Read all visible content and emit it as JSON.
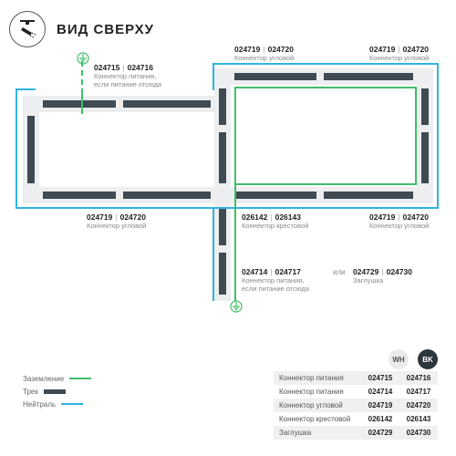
{
  "title": "ВИД СВЕРХУ",
  "colors": {
    "ground": "#3fbf6a",
    "track": "#3f4a53",
    "neutral": "#2fb4e0",
    "slab": "#eceef0",
    "text": "#222222",
    "muted": "#888888",
    "tbl_alt": "#eef0f2"
  },
  "diagram": {
    "type": "diagram",
    "labels": {
      "top_mid": {
        "a": "024719",
        "b": "024720",
        "desc": "Коннектор угловой"
      },
      "top_right": {
        "a": "024719",
        "b": "024720",
        "desc": "Коннектор угловой"
      },
      "left_power": {
        "a": "024715",
        "b": "024716",
        "desc": "Коннектор питания,\nесли питание отсюда"
      },
      "bot_left": {
        "a": "024719",
        "b": "024720",
        "desc": "Коннектор угловой"
      },
      "bot_mid": {
        "a": "026142",
        "b": "026143",
        "desc": "Коннектор крестовой"
      },
      "bot_rt": {
        "a": "024719",
        "b": "024720",
        "desc": "Коннектор угловой"
      },
      "tail_power": {
        "a": "024714",
        "b": "024717",
        "desc": "Коннектор питания,\nесли питание отсюда"
      },
      "or_word": "или",
      "tail_plug": {
        "a": "024729",
        "b": "024730",
        "desc": "Заглушка"
      }
    }
  },
  "legend_colors": [
    {
      "name": "Заземление",
      "color": "#3fbf6a",
      "h": 2
    },
    {
      "name": "Трек",
      "color": "#3f4a53",
      "h": 5
    },
    {
      "name": "Нейтраль",
      "color": "#2fb4e0",
      "h": 2
    }
  ],
  "table": {
    "col_a": "WH",
    "col_b": "BK",
    "rows": [
      {
        "name": "Коннектор питания",
        "a": "024715",
        "b": "024716"
      },
      {
        "name": "Коннектор питания",
        "a": "024714",
        "b": "024717"
      },
      {
        "name": "Коннектор угловой",
        "a": "024719",
        "b": "024720"
      },
      {
        "name": "Коннектор крестовой",
        "a": "026142",
        "b": "026143"
      },
      {
        "name": "Заглушка",
        "a": "024729",
        "b": "024730"
      }
    ]
  }
}
